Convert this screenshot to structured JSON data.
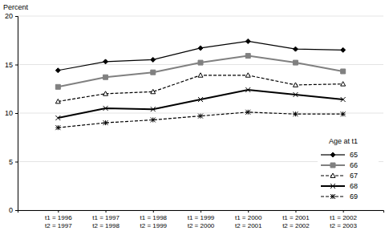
{
  "chart_data": {
    "type": "line",
    "y_label": "Percent",
    "legend_title": "Age at t1",
    "categories": [
      "t1 = 1996\nt2 = 1997",
      "t1 = 1997\nt2 = 1998",
      "t1 = 1998\nt2 = 1999",
      "t1 = 1999\nt2 = 2000",
      "t1 = 2000\nt2 = 2001",
      "t1 = 2001\nt2 = 2002",
      "t1 = 2002\nt2 = 2003"
    ],
    "series": [
      {
        "name": "65",
        "color": "#000000",
        "marker": "diamond",
        "line_style": "solid",
        "values": [
          14.4,
          15.3,
          15.5,
          16.7,
          17.4,
          16.6,
          16.5
        ]
      },
      {
        "name": "66",
        "color": "#808080",
        "marker": "square",
        "line_style": "solid",
        "values": [
          12.7,
          13.7,
          14.2,
          15.2,
          15.9,
          15.2,
          14.3
        ]
      },
      {
        "name": "67",
        "color": "#000000",
        "marker": "triangle-open",
        "line_style": "dashed",
        "values": [
          11.2,
          12.0,
          12.2,
          13.9,
          13.9,
          12.9,
          13.0
        ]
      },
      {
        "name": "68",
        "color": "#000000",
        "marker": "x",
        "line_style": "solid",
        "values": [
          9.5,
          10.5,
          10.4,
          11.4,
          12.4,
          11.9,
          11.4
        ]
      },
      {
        "name": "69",
        "color": "#000000",
        "marker": "asterisk",
        "line_style": "dashed",
        "values": [
          8.5,
          9.0,
          9.3,
          9.7,
          10.1,
          9.9,
          9.9
        ]
      }
    ],
    "ylim": [
      0,
      20
    ],
    "yticks": [
      0,
      5,
      10,
      15,
      20
    ],
    "grid": true,
    "legend": "lower right"
  }
}
